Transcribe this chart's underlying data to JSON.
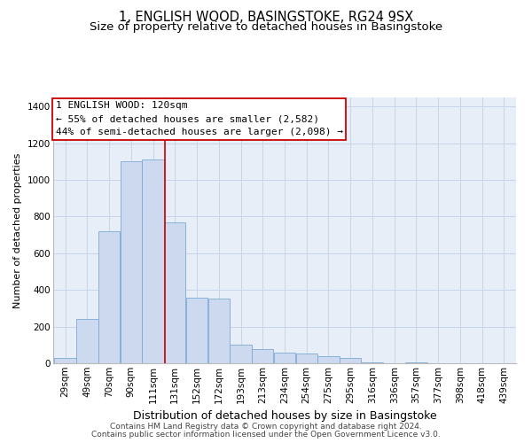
{
  "title": "1, ENGLISH WOOD, BASINGSTOKE, RG24 9SX",
  "subtitle": "Size of property relative to detached houses in Basingstoke",
  "xlabel": "Distribution of detached houses by size in Basingstoke",
  "ylabel": "Number of detached properties",
  "footer_line1": "Contains HM Land Registry data © Crown copyright and database right 2024.",
  "footer_line2": "Contains public sector information licensed under the Open Government Licence v3.0.",
  "annotation_line1": "1 ENGLISH WOOD: 120sqm",
  "annotation_line2": "← 55% of detached houses are smaller (2,582)",
  "annotation_line3": "44% of semi-detached houses are larger (2,098) →",
  "bar_color": "#ccd9ee",
  "bar_edge_color": "#7aaad4",
  "vline_color": "#cc0000",
  "grid_color": "#c8d4e8",
  "background_color": "#e8eef8",
  "categories": [
    "29sqm",
    "49sqm",
    "70sqm",
    "90sqm",
    "111sqm",
    "131sqm",
    "152sqm",
    "172sqm",
    "193sqm",
    "213sqm",
    "234sqm",
    "254sqm",
    "275sqm",
    "295sqm",
    "316sqm",
    "336sqm",
    "357sqm",
    "377sqm",
    "398sqm",
    "418sqm",
    "439sqm"
  ],
  "bin_left_edges": [
    19,
    39,
    59,
    79,
    99,
    119,
    139,
    159,
    179,
    199,
    219,
    239,
    259,
    279,
    299,
    319,
    339,
    359,
    379,
    399,
    419
  ],
  "bin_width": 20,
  "values": [
    28,
    240,
    720,
    1100,
    1110,
    770,
    360,
    355,
    100,
    75,
    60,
    55,
    38,
    28,
    5,
    0,
    5,
    0,
    0,
    0,
    0
  ],
  "vline_x": 120,
  "ylim": [
    0,
    1450
  ],
  "yticks": [
    0,
    200,
    400,
    600,
    800,
    1000,
    1200,
    1400
  ],
  "xlim_left": 18,
  "xlim_right": 440,
  "title_fontsize": 10.5,
  "subtitle_fontsize": 9.5,
  "xlabel_fontsize": 9,
  "ylabel_fontsize": 8,
  "tick_fontsize": 7.5,
  "annotation_fontsize": 8,
  "footer_fontsize": 6.5
}
